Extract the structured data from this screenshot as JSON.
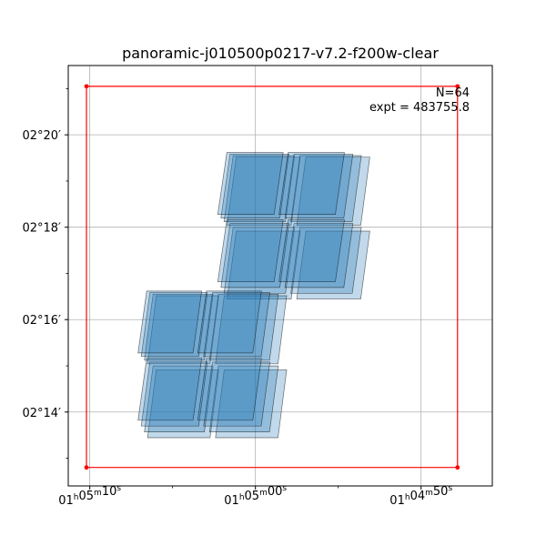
{
  "chart_data": {
    "type": "scatter",
    "title": "panoramic-j010500p0217-v7.2-f200w-clear",
    "xlabel": "",
    "ylabel": "",
    "grid": true,
    "x_axis": {
      "unit": "RA seconds of time after 01h04m00s",
      "inverted": true,
      "range": [
        71.3,
        45.7
      ],
      "ticks": [
        {
          "value": 70,
          "label": {
            "h": "01",
            "m": "05",
            "s": "10"
          }
        },
        {
          "value": 60,
          "label": {
            "h": "01",
            "m": "05",
            "s": "00"
          }
        },
        {
          "value": 50,
          "label": {
            "h": "01",
            "m": "04",
            "s": "50"
          }
        }
      ],
      "minor_ticks": [
        65,
        55
      ]
    },
    "y_axis": {
      "unit": "Dec arcminutes after 02 deg",
      "range": [
        12.4,
        21.5
      ],
      "ticks": [
        {
          "value": 14,
          "label": "02°14′"
        },
        {
          "value": 16,
          "label": "02°16′"
        },
        {
          "value": 18,
          "label": "02°18′"
        },
        {
          "value": 20,
          "label": "02°20′"
        }
      ],
      "minor_ticks": [
        13,
        15,
        17,
        19,
        21
      ]
    },
    "annotations": [
      "N=64",
      "expt = 483755.8"
    ],
    "bounding_box": {
      "color": "#ff0000",
      "corners": [
        [
          70.2,
          12.8
        ],
        [
          47.8,
          12.8
        ],
        [
          47.8,
          21.05
        ],
        [
          70.2,
          21.05
        ]
      ]
    },
    "footprints": {
      "count": 64,
      "fill_color": "#1f77b4",
      "edge_color": "#000000",
      "groups": [
        {
          "name": "",
          "center": [
            58.2,
            18.1
          ],
          "half_width": 4.2,
          "half_height": 1.6,
          "skew": 1.1,
          "layers": 4
        },
        {
          "name": "",
          "center": [
            63.1,
            15.1
          ],
          "half_width": 4.1,
          "half_height": 1.6,
          "skew": 1.05,
          "layers": 4
        }
      ]
    }
  }
}
